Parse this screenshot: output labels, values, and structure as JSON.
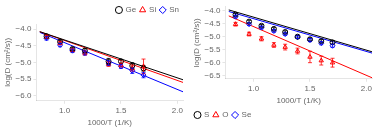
{
  "chart_data": [
    {
      "type": "scatter",
      "xlabel": "1000/T (1/K)",
      "ylabel": "log(D (cm²/s))",
      "xlim": [
        0.75,
        2.05
      ],
      "ylim": [
        -6.15,
        -3.85
      ],
      "xticks": [
        {
          "value": 1.0,
          "label": "1.0"
        },
        {
          "value": 1.5,
          "label": "1.5"
        },
        {
          "value": 2.0,
          "label": "2.0"
        }
      ],
      "yticks": [
        {
          "value": -6.0,
          "label": "−6.0"
        },
        {
          "value": -5.5,
          "label": "−5.5"
        },
        {
          "value": -5.0,
          "label": "−5.0"
        },
        {
          "value": -4.5,
          "label": "−4.5"
        },
        {
          "value": -4.0,
          "label": "−4.0"
        }
      ],
      "grid": false,
      "legend": "upper right",
      "series": [
        {
          "name": "Ge",
          "color": "black",
          "marker": "circle",
          "x": [
            0.84,
            0.96,
            1.07,
            1.18,
            1.39,
            1.5,
            1.6,
            1.7
          ],
          "values": [
            -4.22,
            -4.38,
            -4.6,
            -4.65,
            -4.97,
            -4.97,
            -5.1,
            -5.18
          ],
          "yerr": [
            0.06,
            0.05,
            0.05,
            0.06,
            0.09,
            0.06,
            0.09,
            0.08
          ],
          "fit_x": [
            0.78,
            2.05
          ],
          "fit_y": [
            -4.08,
            -5.52
          ]
        },
        {
          "name": "Si",
          "color": "red",
          "marker": "triangle",
          "x": [
            0.84,
            0.96,
            1.07,
            1.18,
            1.39,
            1.5,
            1.6,
            1.7
          ],
          "values": [
            -4.23,
            -4.42,
            -4.63,
            -4.72,
            -5.05,
            -5.08,
            -5.18,
            -5.12
          ],
          "yerr": [
            0.05,
            0.05,
            0.05,
            0.06,
            0.07,
            0.06,
            0.08,
            0.22
          ],
          "fit_x": [
            0.78,
            2.05
          ],
          "fit_y": [
            -4.08,
            -5.6
          ]
        },
        {
          "name": "Sn",
          "color": "blue",
          "marker": "diamond",
          "x": [
            0.84,
            0.96,
            1.07,
            1.18,
            1.39,
            1.5,
            1.6,
            1.7
          ],
          "values": [
            -4.28,
            -4.48,
            -4.65,
            -4.72,
            -5.02,
            -5.12,
            -5.25,
            -5.38
          ],
          "yerr": [
            0.05,
            0.05,
            0.05,
            0.06,
            0.07,
            0.06,
            0.08,
            0.08
          ],
          "fit_x": [
            0.78,
            2.05
          ],
          "fit_y": [
            -4.1,
            -5.88
          ]
        }
      ]
    },
    {
      "type": "scatter",
      "xlabel": "1000/T (1/K)",
      "ylabel": "log(D (cm²/s))",
      "xlim": [
        0.75,
        2.05
      ],
      "ylim": [
        -6.62,
        -3.85
      ],
      "xticks": [
        {
          "value": 1.0,
          "label": "1.0"
        },
        {
          "value": 1.5,
          "label": "1.5"
        },
        {
          "value": 2.0,
          "label": "2.0"
        }
      ],
      "yticks": [
        {
          "value": -6.5,
          "label": "−6.5"
        },
        {
          "value": -6.0,
          "label": "−6.0"
        },
        {
          "value": -5.5,
          "label": "−5.5"
        },
        {
          "value": -5.0,
          "label": "−5.0"
        },
        {
          "value": -4.5,
          "label": "−4.5"
        },
        {
          "value": -4.0,
          "label": "−4.0"
        }
      ],
      "grid": false,
      "legend": "lower left",
      "series": [
        {
          "name": "S",
          "color": "black",
          "marker": "circle",
          "x": [
            0.84,
            0.96,
            1.07,
            1.18,
            1.28,
            1.39,
            1.5,
            1.6,
            1.7
          ],
          "values": [
            -4.15,
            -4.42,
            -4.58,
            -4.7,
            -4.82,
            -5.0,
            -5.1,
            -5.17,
            -5.22
          ],
          "yerr": [
            0.05,
            0.05,
            0.05,
            0.05,
            0.05,
            0.05,
            0.06,
            0.06,
            0.06
          ],
          "fit_x": [
            0.78,
            2.05
          ],
          "fit_y": [
            -3.97,
            -5.58
          ]
        },
        {
          "name": "O",
          "color": "red",
          "marker": "triangle",
          "x": [
            0.84,
            0.96,
            1.07,
            1.18,
            1.28,
            1.39,
            1.5,
            1.6,
            1.7
          ],
          "values": [
            -4.52,
            -4.9,
            -5.08,
            -5.32,
            -5.4,
            -5.55,
            -5.78,
            -5.92,
            -6.0
          ],
          "yerr": [
            0.07,
            0.07,
            0.08,
            0.09,
            0.11,
            0.11,
            0.22,
            0.17,
            0.17
          ],
          "fit_x": [
            0.78,
            2.05
          ],
          "fit_y": [
            -4.2,
            -6.58
          ]
        },
        {
          "name": "Se",
          "color": "blue",
          "marker": "diamond",
          "x": [
            0.84,
            0.96,
            1.07,
            1.18,
            1.28,
            1.39,
            1.5,
            1.6,
            1.7
          ],
          "values": [
            -4.23,
            -4.52,
            -4.65,
            -4.78,
            -4.9,
            -5.02,
            -5.13,
            -5.25,
            -5.35
          ],
          "yerr": [
            0.05,
            0.05,
            0.05,
            0.05,
            0.05,
            0.05,
            0.06,
            0.06,
            0.06
          ],
          "fit_x": [
            0.78,
            2.05
          ],
          "fit_y": [
            -4.03,
            -5.63
          ]
        }
      ]
    }
  ]
}
